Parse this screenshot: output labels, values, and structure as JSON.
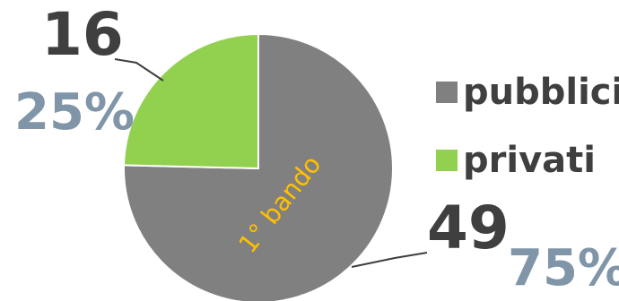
{
  "colors": {
    "pubblici": "#808080",
    "privati": "#92d050",
    "count_text": "#3f3f3f",
    "percent_text": "#8096a8",
    "inner_text": "#ffc000"
  },
  "inner_label": "1° bando",
  "chart_data": {
    "type": "pie",
    "categories": [
      "pubblici",
      "privati"
    ],
    "values": [
      49,
      16
    ],
    "data_labels": [
      {
        "value": "49",
        "percent": "75%"
      },
      {
        "value": "16",
        "percent": "25%"
      }
    ],
    "legend": [
      "pubblici",
      "privati"
    ],
    "legend_position": "right"
  }
}
